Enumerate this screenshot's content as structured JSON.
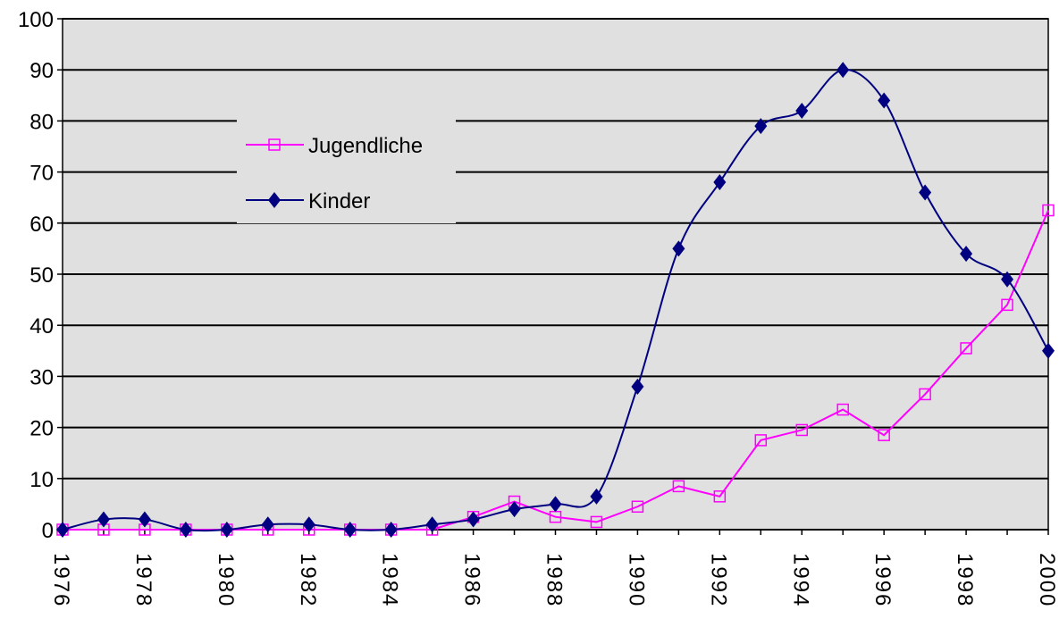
{
  "chart_data": {
    "type": "line",
    "x": [
      1976,
      1977,
      1978,
      1979,
      1980,
      1981,
      1982,
      1983,
      1984,
      1985,
      1986,
      1987,
      1988,
      1989,
      1990,
      1991,
      1992,
      1993,
      1994,
      1995,
      1996,
      1997,
      1998,
      1999,
      2000
    ],
    "series": [
      {
        "name": "Jugendliche",
        "color": "#ff00ff",
        "marker": "square",
        "smooth": false,
        "values": [
          0,
          0,
          0,
          0,
          0,
          0,
          0,
          0,
          0,
          0,
          2.5,
          5.5,
          2.5,
          1.5,
          4.5,
          8.5,
          6.5,
          17.5,
          19.5,
          23.5,
          18.5,
          26.5,
          35.5,
          44,
          62.5
        ]
      },
      {
        "name": "Kinder",
        "color": "#000080",
        "marker": "diamond",
        "smooth": true,
        "values": [
          0,
          2,
          2,
          0,
          0,
          1,
          1,
          0,
          0,
          1,
          2,
          4,
          5,
          6.5,
          28,
          55,
          68,
          79,
          82,
          90,
          84,
          66,
          54,
          49,
          35
        ]
      }
    ],
    "xlim": [
      1976,
      2000
    ],
    "xticks": [
      1976,
      1978,
      1980,
      1982,
      1984,
      1986,
      1988,
      1990,
      1992,
      1994,
      1996,
      1998,
      2000
    ],
    "ylim": [
      0,
      100
    ],
    "yticks": [
      0,
      10,
      20,
      30,
      40,
      50,
      60,
      70,
      80,
      90,
      100
    ],
    "grid": true,
    "legend": "upper left"
  }
}
